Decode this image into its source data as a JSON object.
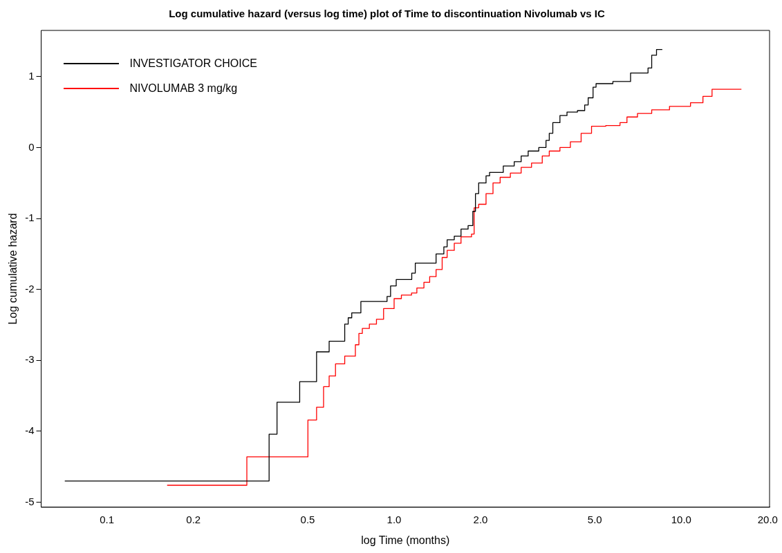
{
  "chart_data": {
    "type": "step",
    "title": "Log cumulative hazard (versus log time) plot of Time to discontinuation Nivolumab vs IC",
    "xlabel": "log Time (months)",
    "ylabel": "Log cumulative hazard",
    "log": "x",
    "grid": false,
    "legend": "top left",
    "marker": "none",
    "line_style": "solid",
    "xlim": [
      0.059,
      20.3
    ],
    "ylim": [
      -5.07,
      1.65
    ],
    "xticks": [
      0.1,
      0.2,
      0.5,
      {
        "value": 1,
        "label": "1.0"
      },
      {
        "value": 2,
        "label": "2.0"
      },
      {
        "value": 5,
        "label": "5.0"
      },
      {
        "value": 10,
        "label": "10.0"
      },
      {
        "value": 20,
        "label": "20.0"
      }
    ],
    "yticks": [
      -5,
      -4,
      -3,
      -2,
      -1,
      0,
      1
    ],
    "series": [
      {
        "name": "INVESTIGATOR CHOICE",
        "color": "#000000",
        "x": [
          0.0713,
          0.367,
          0.391,
          0.469,
          0.537,
          0.594,
          0.673,
          0.692,
          0.712,
          0.766,
          0.945,
          0.972,
          1.017,
          1.152,
          1.185,
          1.4,
          1.49,
          1.53,
          1.62,
          1.71,
          1.81,
          1.88,
          1.92,
          1.97,
          2.09,
          2.15,
          2.4,
          2.62,
          2.77,
          2.93,
          3.19,
          3.38,
          3.47,
          3.57,
          3.78,
          4.0,
          4.35,
          4.61,
          4.74,
          4.93,
          5.05,
          5.78,
          6.66,
          7.66,
          7.89,
          8.2,
          8.59
        ],
        "values": [
          -4.7,
          -4.04,
          -3.59,
          -3.3,
          -2.88,
          -2.73,
          -2.49,
          -2.4,
          -2.33,
          -2.17,
          -2.1,
          -1.95,
          -1.86,
          -1.77,
          -1.63,
          -1.5,
          -1.4,
          -1.3,
          -1.25,
          -1.15,
          -1.1,
          -0.9,
          -0.65,
          -0.5,
          -0.4,
          -0.35,
          -0.26,
          -0.2,
          -0.12,
          -0.05,
          0.0,
          0.1,
          0.2,
          0.35,
          0.45,
          0.5,
          0.52,
          0.6,
          0.7,
          0.85,
          0.9,
          0.93,
          1.05,
          1.12,
          1.3,
          1.38,
          1.38
        ]
      },
      {
        "name": "NIVOLUMAB 3 mg/kg",
        "color": "#ff0000",
        "x": [
          0.162,
          0.307,
          0.501,
          0.537,
          0.568,
          0.594,
          0.625,
          0.673,
          0.733,
          0.754,
          0.775,
          0.82,
          0.868,
          0.919,
          1.0,
          1.06,
          1.15,
          1.2,
          1.27,
          1.33,
          1.4,
          1.47,
          1.53,
          1.62,
          1.71,
          1.86,
          1.9,
          1.97,
          2.09,
          2.21,
          2.34,
          2.54,
          2.77,
          3.01,
          3.28,
          3.47,
          3.78,
          4.11,
          4.48,
          4.87,
          5.46,
          6.12,
          6.47,
          7.04,
          7.89,
          9.1,
          10.77,
          11.9,
          12.8,
          16.2
        ],
        "values": [
          -4.76,
          -4.36,
          -3.84,
          -3.66,
          -3.37,
          -3.22,
          -3.05,
          -2.94,
          -2.78,
          -2.62,
          -2.55,
          -2.49,
          -2.42,
          -2.27,
          -2.13,
          -2.08,
          -2.05,
          -1.98,
          -1.9,
          -1.82,
          -1.72,
          -1.55,
          -1.45,
          -1.35,
          -1.26,
          -1.22,
          -0.85,
          -0.8,
          -0.65,
          -0.5,
          -0.42,
          -0.36,
          -0.28,
          -0.22,
          -0.12,
          -0.05,
          0.0,
          0.08,
          0.2,
          0.3,
          0.31,
          0.35,
          0.43,
          0.48,
          0.53,
          0.58,
          0.63,
          0.72,
          0.82,
          0.82
        ]
      }
    ]
  }
}
